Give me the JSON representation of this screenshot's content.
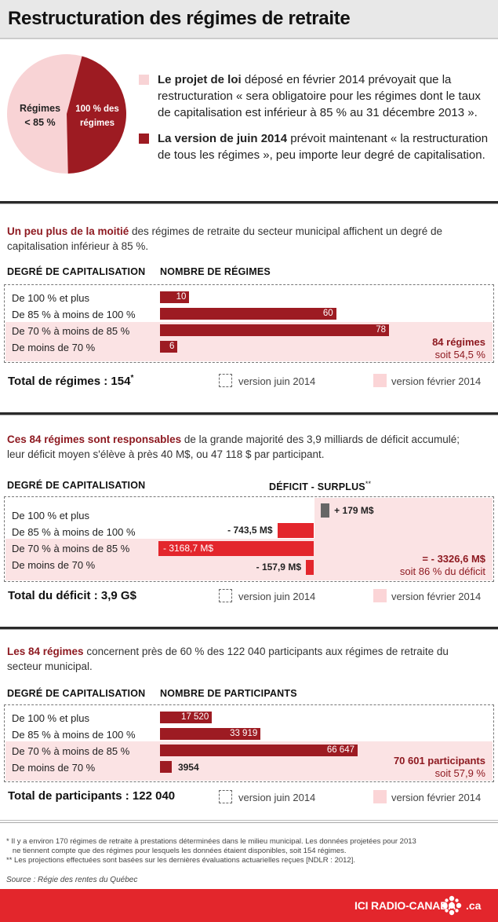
{
  "header": {
    "title": "Restructuration des régimes de retraite"
  },
  "pie": {
    "slices": [
      {
        "label_line1": "Régimes",
        "label_line2": "< 85 %",
        "value": 54.5,
        "color": "#f8d3d5"
      },
      {
        "label_line1": "100 % des",
        "label_line2": "régimes",
        "value": 45.5,
        "color": "#9d1b22"
      }
    ]
  },
  "legend": [
    {
      "bold": "Le projet de loi",
      "text": " déposé en février 2014 prévoyait que la restructuration « sera obligatoire pour les régimes dont le taux de capitalisation est inférieur à 85  % au 31 décembre 2013 ».",
      "color": "#f8d3d5"
    },
    {
      "bold": "La version de juin 2014",
      "text": " prévoit maintenant « la restructuration de tous les régimes », peu importe leur degré de capitalisation.",
      "color": "#9d1b22"
    }
  ],
  "sections": [
    {
      "intro_bold": "Un peu plus de la moitié",
      "intro_text": " des régimes de retraite du secteur municipal affichent  un degré de capitalisation inférieur à 85 %.",
      "col1": "DEGRÉ DE CAPITALISATION",
      "col2": "NOMBRE DE RÉGIMES",
      "rows": [
        {
          "label": "De 100 % et plus",
          "value": 10,
          "value_label": "10"
        },
        {
          "label": "De 85 % à moins de 100 %",
          "value": 60,
          "value_label": "60"
        },
        {
          "label": "De 70 % à moins de 85 %",
          "value": 78,
          "value_label": "78"
        },
        {
          "label": "De moins de 70 %",
          "value": 6,
          "value_label": "6"
        }
      ],
      "note_strong": "84 régimes",
      "note_weak": "soit 54,5  %",
      "total": "Total de régimes : 154",
      "total_sup": "*",
      "legend_june": "version juin 2014",
      "legend_feb": "version février 2014"
    },
    {
      "intro_bold": "Ces 84 régimes sont responsables",
      "intro_text": " de la grande majorité des 3,9 milliards de déficit accumulé; leur déficit moyen s'élève à près 40 M$, ou 47 118 $ par participant.",
      "col1": "DEGRÉ DE CAPITALISATION",
      "col2": "DÉFICIT - SURPLUS",
      "col2_sup": "**",
      "rows": [
        {
          "label": "De 100 % et plus",
          "value": 179,
          "value_label": "+ 179 M$"
        },
        {
          "label": "De 85 % à moins de 100 %",
          "value": -743.5,
          "value_label": "- 743,5 M$"
        },
        {
          "label": "De 70 % à moins de 85 %",
          "value": -3168.7,
          "value_label": "- 3168,7 M$"
        },
        {
          "label": "De moins de 70 %",
          "value": -157.9,
          "value_label": "- 157,9 M$"
        }
      ],
      "note_strong": "=  - 3326,6 M$",
      "note_weak": "soit 86 % du déficit",
      "total": "Total du déficit : 3,9 G$",
      "legend_june": "version juin 2014",
      "legend_feb": "version février 2014"
    },
    {
      "intro_bold": "Les 84 régimes",
      "intro_text": " concernent près de 60 % des 122 040 participants aux régimes de retraite du secteur municipal.",
      "col1": "DEGRÉ DE CAPITALISATION",
      "col2": "NOMBRE DE PARTICIPANTS",
      "rows": [
        {
          "label": "De 100 % et plus",
          "value": 17520,
          "value_label": "17 520"
        },
        {
          "label": "De 85 % à moins de 100 %",
          "value": 33919,
          "value_label": "33 919"
        },
        {
          "label": "De 70 % à moins de 85 %",
          "value": 66647,
          "value_label": "66 647"
        },
        {
          "label": "De moins de 70 %",
          "value": 3954,
          "value_label": "3954"
        }
      ],
      "note_strong": "70 601 participants",
      "note_weak": "soit 57,9 %",
      "total": "Total de participants : 122 040",
      "legend_june": "version juin 2014",
      "legend_feb": "version février 2014"
    }
  ],
  "footnotes": {
    "line1": "* Il y a environ 170 régimes de retraite à prestations déterminées dans le milieu municipal. Les données projetées pour 2013",
    "line2": "   ne tiennent compte que des régimes pour lesquels les données étaient disponibles, soit 154 régimes.",
    "line3": "** Les projections effectuées sont basées sur les dernières évaluations actuarielles reçues [NDLR : 2012].",
    "source_label": "Source",
    "source_text": " : Régie des rentes du Québec"
  },
  "brand": {
    "name": "ICI RADIO-CANADA",
    "suffix": ".ca"
  },
  "colors": {
    "dark_red": "#9d1b22",
    "bright_red": "#e3262c",
    "pink": "#fbe3e4",
    "gray": "#666666"
  },
  "chart_data": [
    {
      "type": "pie",
      "values": [
        54.5,
        45.5
      ],
      "labels": [
        "Régimes < 85 %",
        "100 % des régimes"
      ]
    },
    {
      "type": "bar",
      "categories": [
        "De 100 % et plus",
        "De 85 % à moins de 100 %",
        "De 70 % à moins de 85 %",
        "De moins de 70 %"
      ],
      "series": [
        {
          "values": [
            10,
            60,
            78,
            6
          ]
        }
      ],
      "xlabel": "NOMBRE DE RÉGIMES"
    },
    {
      "type": "bar",
      "categories": [
        "De 100 % et plus",
        "De 85 % à moins de 100 %",
        "De 70 % à moins de 85 %",
        "De moins de 70 %"
      ],
      "series": [
        {
          "values": [
            179,
            -743.5,
            -3168.7,
            -157.9
          ]
        }
      ],
      "xlabel": "DÉFICIT - SURPLUS"
    },
    {
      "type": "bar",
      "categories": [
        "De 100 % et plus",
        "De 85 % à moins de 100 %",
        "De 70 % à moins de 85 %",
        "De moins de 70 %"
      ],
      "series": [
        {
          "values": [
            17520,
            33919,
            66647,
            3954
          ]
        }
      ],
      "xlabel": "NOMBRE DE PARTICIPANTS"
    }
  ]
}
